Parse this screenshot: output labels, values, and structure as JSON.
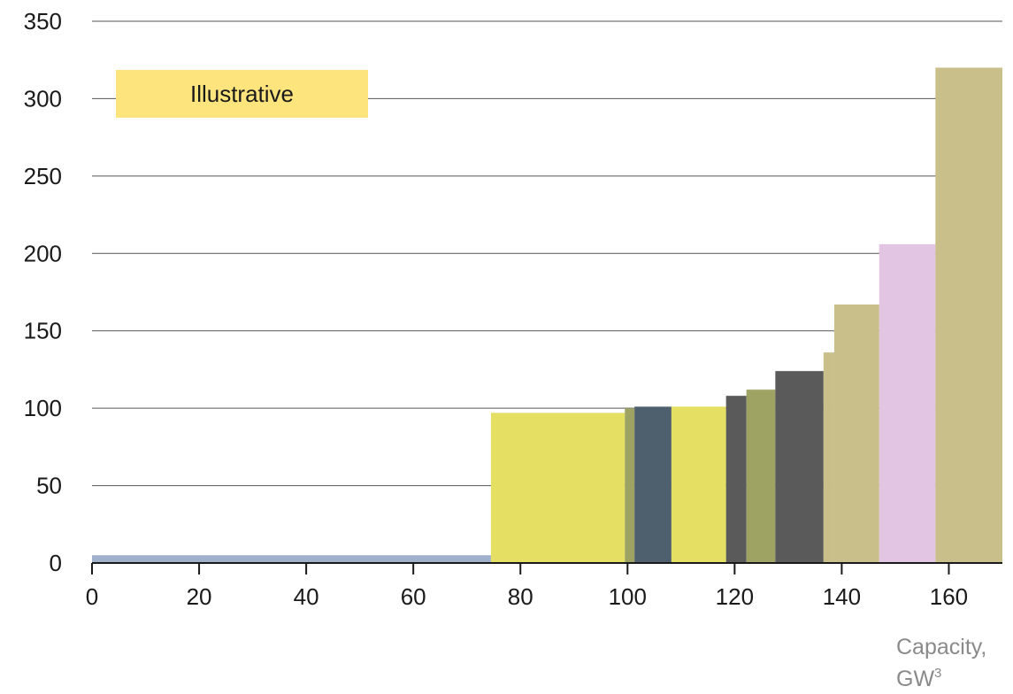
{
  "note": {
    "text": "Illustrative",
    "color": "#fde47d"
  },
  "axis": {
    "xlabel_main": "Capacity,",
    "xlabel_unit": "GW",
    "xlabel_sup": "3"
  },
  "chart_data": {
    "type": "bar",
    "subtype": "variable-width step chart",
    "title": "",
    "xlabel": "Capacity, GW3",
    "ylabel": "",
    "xlim": [
      0,
      170
    ],
    "ylim": [
      0,
      350
    ],
    "xticks": [
      0,
      20,
      40,
      60,
      80,
      100,
      120,
      140,
      160
    ],
    "yticks": [
      0,
      50,
      100,
      150,
      200,
      250,
      300,
      350
    ],
    "grid": "horizontal",
    "bars": [
      {
        "x0": 0,
        "x1": 74.5,
        "value": 5,
        "color": "#9fb1cc"
      },
      {
        "x0": 74.5,
        "x1": 99.5,
        "value": 97,
        "color": "#e5e063"
      },
      {
        "x0": 99.5,
        "x1": 101.3,
        "value": 100,
        "color": "#9ea364"
      },
      {
        "x0": 101.3,
        "x1": 108.2,
        "value": 101,
        "color": "#4e5f6d"
      },
      {
        "x0": 108.2,
        "x1": 118.4,
        "value": 101,
        "color": "#e5e063"
      },
      {
        "x0": 118.4,
        "x1": 122.2,
        "value": 108,
        "color": "#5a5a5a"
      },
      {
        "x0": 122.2,
        "x1": 127.6,
        "value": 112,
        "color": "#9ea364"
      },
      {
        "x0": 127.6,
        "x1": 136.6,
        "value": 124,
        "color": "#5a5a5a"
      },
      {
        "x0": 136.6,
        "x1": 138.6,
        "value": 136,
        "color": "#c8bf8a"
      },
      {
        "x0": 138.6,
        "x1": 147.0,
        "value": 167,
        "color": "#c8bf8a"
      },
      {
        "x0": 147.0,
        "x1": 157.5,
        "value": 206,
        "color": "#e2c5e2"
      },
      {
        "x0": 157.5,
        "x1": 170.0,
        "value": 320,
        "color": "#c8bf8a"
      }
    ]
  }
}
